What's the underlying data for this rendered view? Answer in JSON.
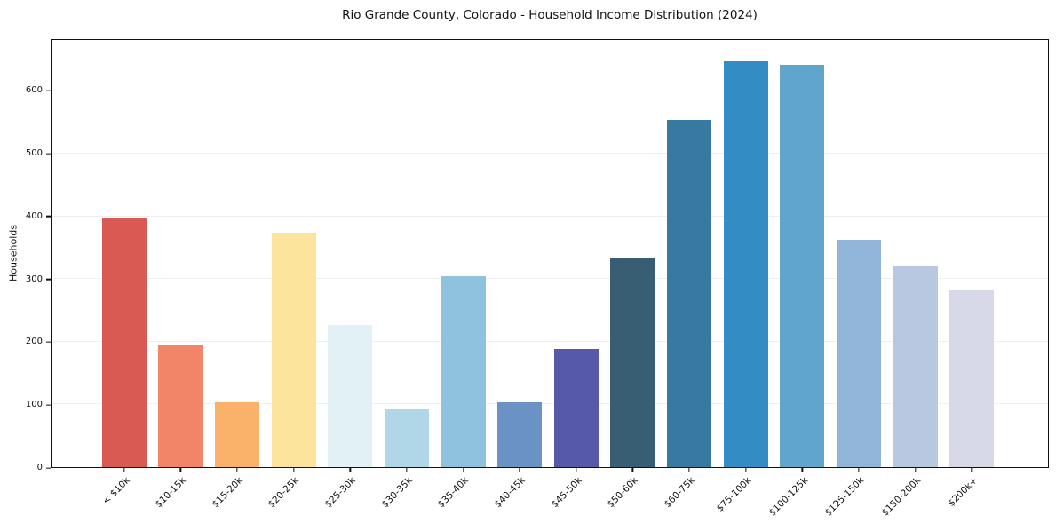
{
  "chart_data": {
    "type": "bar",
    "title": "Rio Grande County, Colorado - Household Income Distribution (2024)",
    "xlabel": "",
    "ylabel": "Households",
    "categories": [
      "< $10k",
      "$10-15k",
      "$15-20k",
      "$20-25k",
      "$25-30k",
      "$30-35k",
      "$35-40k",
      "$40-45k",
      "$45-50k",
      "$50-60k",
      "$60-75k",
      "$75-100k",
      "$100-125k",
      "$125-150k",
      "$150-200k",
      "$200k+"
    ],
    "values": [
      399,
      195,
      104,
      374,
      227,
      92,
      305,
      103,
      189,
      334,
      554,
      648,
      643,
      363,
      322,
      282
    ],
    "bar_colors": [
      "#d85a52",
      "#f28568",
      "#fab169",
      "#fde49d",
      "#e1f1f6",
      "#b0d7e8",
      "#8ec2de",
      "#6b92c5",
      "#5659a7",
      "#375e73",
      "#3779a0",
      "#348cc4",
      "#60a6cc",
      "#91b6d9",
      "#b8c8e0",
      "#d8d9e8"
    ],
    "yticks": [
      0,
      100,
      200,
      300,
      400,
      500,
      600
    ],
    "ylim": [
      0,
      682
    ],
    "grid": "horizontal-only",
    "gridline_color": "#efefef",
    "legend": "none",
    "background_color": "#ffffff",
    "spine_color": "#111111"
  }
}
